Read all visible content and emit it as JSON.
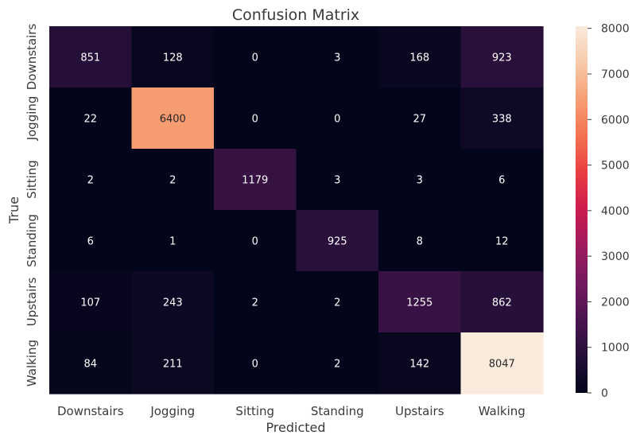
{
  "chart_data": {
    "type": "heatmap",
    "title": "Confusion Matrix",
    "xlabel": "Predicted",
    "ylabel": "True",
    "x_categories": [
      "Downstairs",
      "Jogging",
      "Sitting",
      "Standing",
      "Upstairs",
      "Walking"
    ],
    "y_categories": [
      "Downstairs",
      "Jogging",
      "Sitting",
      "Standing",
      "Upstairs",
      "Walking"
    ],
    "values": [
      [
        851,
        128,
        0,
        3,
        168,
        923
      ],
      [
        22,
        6400,
        0,
        0,
        27,
        338
      ],
      [
        2,
        2,
        1179,
        3,
        3,
        6
      ],
      [
        6,
        1,
        0,
        925,
        8,
        12
      ],
      [
        107,
        243,
        2,
        2,
        1255,
        862
      ],
      [
        84,
        211,
        0,
        2,
        142,
        8047
      ]
    ],
    "colorbar": {
      "range": [
        0,
        8047
      ],
      "ticks": [
        0,
        1000,
        2000,
        3000,
        4000,
        5000,
        6000,
        7000,
        8000
      ]
    },
    "colormap": "rocket",
    "grid": false
  }
}
